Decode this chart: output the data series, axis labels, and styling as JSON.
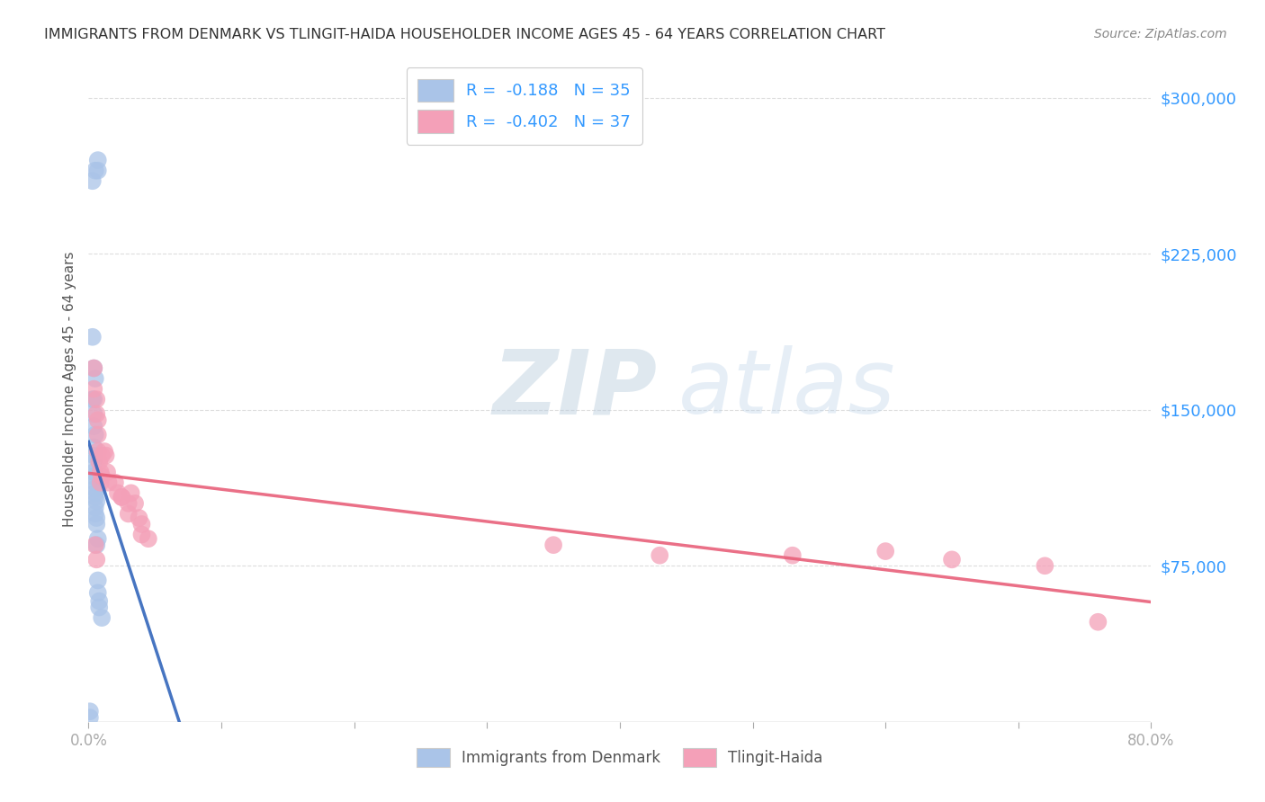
{
  "title": "IMMIGRANTS FROM DENMARK VS TLINGIT-HAIDA HOUSEHOLDER INCOME AGES 45 - 64 YEARS CORRELATION CHART",
  "source": "Source: ZipAtlas.com",
  "ylabel": "Householder Income Ages 45 - 64 years",
  "right_yticks": [
    "$300,000",
    "$225,000",
    "$150,000",
    "$75,000"
  ],
  "right_ytick_vals": [
    300000,
    225000,
    150000,
    75000
  ],
  "ylim": [
    0,
    320000
  ],
  "xlim": [
    0.0,
    0.8
  ],
  "color_blue": "#aac4e8",
  "color_pink": "#f4a0b8",
  "color_blue_line": "#3366bb",
  "color_pink_line": "#e8607a",
  "color_dashed": "#aabbd0",
  "watermark_zip": "ZIP",
  "watermark_atlas": "atlas",
  "background_color": "#ffffff",
  "blue_scatter_x": [
    0.005,
    0.007,
    0.007,
    0.003,
    0.003,
    0.004,
    0.005,
    0.003,
    0.004,
    0.004,
    0.004,
    0.005,
    0.004,
    0.004,
    0.004,
    0.004,
    0.004,
    0.005,
    0.005,
    0.005,
    0.005,
    0.006,
    0.005,
    0.005,
    0.006,
    0.006,
    0.007,
    0.006,
    0.007,
    0.007,
    0.008,
    0.008,
    0.01,
    0.001,
    0.001
  ],
  "blue_scatter_y": [
    265000,
    270000,
    265000,
    260000,
    185000,
    170000,
    165000,
    155000,
    155000,
    148000,
    142000,
    138000,
    132000,
    128000,
    125000,
    120000,
    118000,
    115000,
    112000,
    110000,
    108000,
    106000,
    103000,
    100000,
    98000,
    95000,
    88000,
    85000,
    68000,
    62000,
    58000,
    55000,
    50000,
    5000,
    2000
  ],
  "pink_scatter_x": [
    0.004,
    0.004,
    0.006,
    0.006,
    0.007,
    0.007,
    0.007,
    0.008,
    0.009,
    0.009,
    0.01,
    0.01,
    0.012,
    0.013,
    0.014,
    0.015,
    0.02,
    0.022,
    0.025,
    0.025,
    0.03,
    0.03,
    0.032,
    0.035,
    0.038,
    0.04,
    0.04,
    0.045,
    0.005,
    0.006,
    0.35,
    0.43,
    0.53,
    0.6,
    0.65,
    0.72,
    0.76
  ],
  "pink_scatter_y": [
    170000,
    160000,
    155000,
    148000,
    145000,
    138000,
    130000,
    125000,
    120000,
    115000,
    128000,
    118000,
    130000,
    128000,
    120000,
    115000,
    115000,
    110000,
    108000,
    108000,
    105000,
    100000,
    110000,
    105000,
    98000,
    95000,
    90000,
    88000,
    85000,
    78000,
    85000,
    80000,
    80000,
    82000,
    78000,
    75000,
    48000
  ],
  "grid_color": "#dddddd",
  "title_color": "#333333",
  "right_label_color": "#3399ff",
  "xtick_minor": [
    0.1,
    0.2,
    0.3,
    0.4,
    0.5,
    0.6,
    0.7
  ]
}
